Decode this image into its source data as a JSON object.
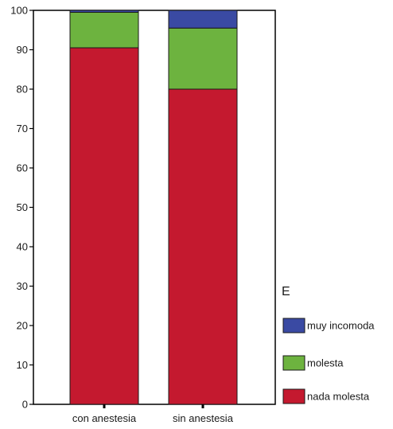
{
  "chart_data": {
    "type": "bar",
    "stacked": true,
    "categories": [
      "con anestesia",
      "sin anestesia"
    ],
    "series": [
      {
        "name": "nada molesta",
        "values": [
          90.5,
          80.0
        ],
        "color": "#c4192f"
      },
      {
        "name": "molesta",
        "values": [
          9.0,
          15.5
        ],
        "color": "#6db33f"
      },
      {
        "name": "muy incomoda",
        "values": [
          0.5,
          4.5
        ],
        "color": "#3a4aa3"
      }
    ],
    "ylim": [
      0,
      100
    ],
    "yticks": [
      "0",
      "10",
      "20",
      "30",
      "40",
      "50",
      "60",
      "70",
      "80",
      "90",
      "100"
    ],
    "legend": {
      "title": "E",
      "placement": "right",
      "entries": [
        "muy incomoda",
        "molesta",
        "nada molesta"
      ]
    },
    "grid": false,
    "frame_color": "#000000"
  }
}
